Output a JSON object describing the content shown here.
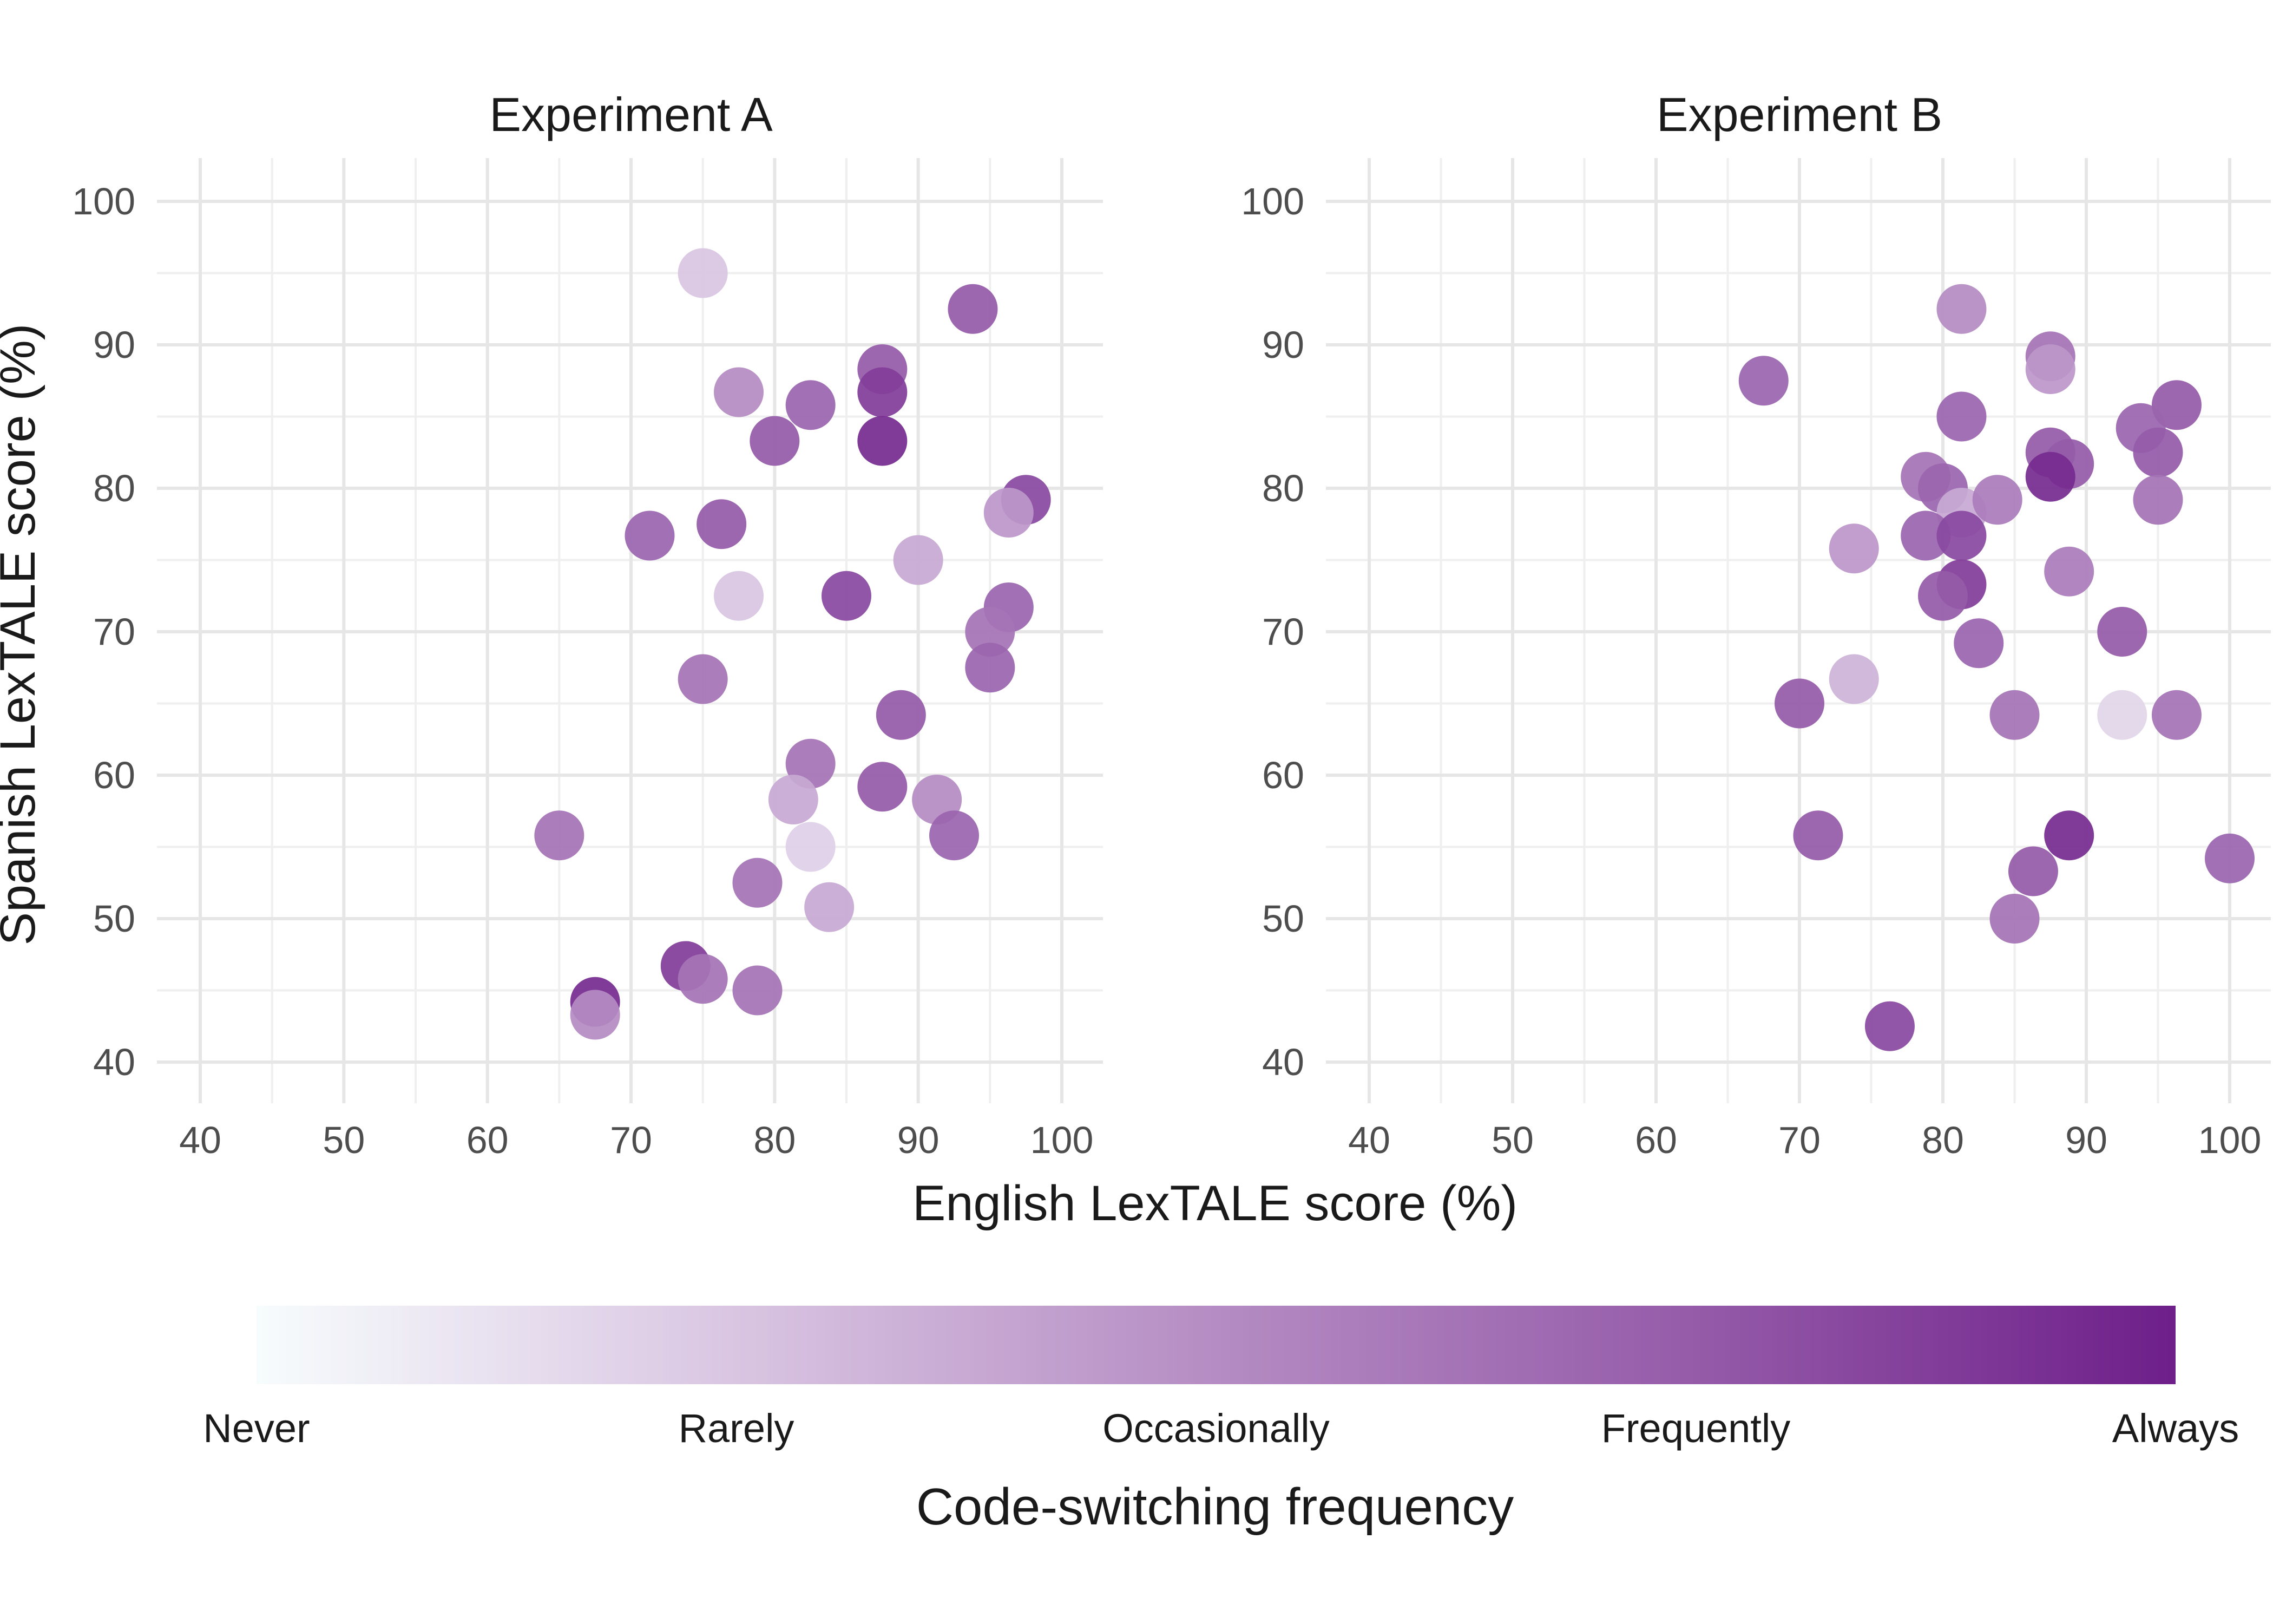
{
  "figure": {
    "xlabel": "English LexTALE score (%)",
    "ylabel": "Spanish LexTALE score (%)"
  },
  "legend": {
    "title": "Code-switching frequency",
    "levels": [
      "Never",
      "Rarely",
      "Occasionally",
      "Frequently",
      "Always"
    ],
    "scale_min": 0,
    "scale_max": 4,
    "colors": [
      "#f7fcfd",
      "#d9c5e2",
      "#b58cc3",
      "#955ba9",
      "#6e1f8a"
    ]
  },
  "chart_data": [
    {
      "type": "scatter",
      "title": "Experiment A",
      "xlabel": "English LexTALE score (%)",
      "ylabel": "Spanish LexTALE score (%)",
      "xlim": [
        40,
        100
      ],
      "ylim": [
        40,
        100
      ],
      "x_ticks": [
        "40",
        "50",
        "60",
        "70",
        "80",
        "90",
        "100"
      ],
      "y_ticks": [
        "40",
        "50",
        "60",
        "70",
        "80",
        "90",
        "100"
      ],
      "grid": true,
      "points": [
        {
          "x": 75,
          "y": 95,
          "cs": 1.0
        },
        {
          "x": 93.8,
          "y": 92.5,
          "cs": 3.0
        },
        {
          "x": 87.5,
          "y": 88.3,
          "cs": 3.0
        },
        {
          "x": 87.5,
          "y": 86.7,
          "cs": 3.5
        },
        {
          "x": 77.5,
          "y": 86.7,
          "cs": 2.0
        },
        {
          "x": 82.5,
          "y": 85.8,
          "cs": 2.8
        },
        {
          "x": 80,
          "y": 83.3,
          "cs": 3.0
        },
        {
          "x": 87.5,
          "y": 83.3,
          "cs": 3.8
        },
        {
          "x": 97.5,
          "y": 79.2,
          "cs": 3.3
        },
        {
          "x": 96.3,
          "y": 78.3,
          "cs": 1.8
        },
        {
          "x": 76.3,
          "y": 77.5,
          "cs": 3.0
        },
        {
          "x": 71.3,
          "y": 76.7,
          "cs": 2.8
        },
        {
          "x": 90,
          "y": 75,
          "cs": 1.5
        },
        {
          "x": 77.5,
          "y": 72.5,
          "cs": 1.0
        },
        {
          "x": 85,
          "y": 72.5,
          "cs": 3.3
        },
        {
          "x": 96.3,
          "y": 71.7,
          "cs": 2.8
        },
        {
          "x": 95,
          "y": 70,
          "cs": 2.5
        },
        {
          "x": 95,
          "y": 67.5,
          "cs": 2.8
        },
        {
          "x": 75,
          "y": 66.7,
          "cs": 2.5
        },
        {
          "x": 88.8,
          "y": 64.2,
          "cs": 3.0
        },
        {
          "x": 82.5,
          "y": 60.8,
          "cs": 2.5
        },
        {
          "x": 87.5,
          "y": 59.2,
          "cs": 3.0
        },
        {
          "x": 81.3,
          "y": 58.3,
          "cs": 1.5
        },
        {
          "x": 91.3,
          "y": 58.3,
          "cs": 2.0
        },
        {
          "x": 65,
          "y": 55.8,
          "cs": 2.5
        },
        {
          "x": 92.5,
          "y": 55.8,
          "cs": 2.8
        },
        {
          "x": 82.5,
          "y": 55,
          "cs": 0.8
        },
        {
          "x": 78.8,
          "y": 52.5,
          "cs": 2.5
        },
        {
          "x": 83.8,
          "y": 50.8,
          "cs": 1.5
        },
        {
          "x": 73.8,
          "y": 46.7,
          "cs": 3.5
        },
        {
          "x": 75,
          "y": 45.8,
          "cs": 2.5
        },
        {
          "x": 78.8,
          "y": 45,
          "cs": 2.5
        },
        {
          "x": 67.5,
          "y": 44.2,
          "cs": 3.8
        },
        {
          "x": 67.5,
          "y": 43.3,
          "cs": 2.0
        }
      ]
    },
    {
      "type": "scatter",
      "title": "Experiment B",
      "xlabel": "English LexTALE score (%)",
      "ylabel": "Spanish LexTALE score (%)",
      "xlim": [
        40,
        100
      ],
      "ylim": [
        40,
        100
      ],
      "x_ticks": [
        "40",
        "50",
        "60",
        "70",
        "80",
        "90",
        "100"
      ],
      "y_ticks": [
        "40",
        "50",
        "60",
        "70",
        "80",
        "90",
        "100"
      ],
      "grid": true,
      "points": [
        {
          "x": 81.3,
          "y": 92.5,
          "cs": 2.0
        },
        {
          "x": 87.5,
          "y": 89.2,
          "cs": 2.5
        },
        {
          "x": 87.5,
          "y": 88.3,
          "cs": 1.8
        },
        {
          "x": 67.5,
          "y": 87.5,
          "cs": 2.8
        },
        {
          "x": 96.3,
          "y": 85.8,
          "cs": 3.0
        },
        {
          "x": 81.3,
          "y": 85,
          "cs": 2.8
        },
        {
          "x": 93.8,
          "y": 84.2,
          "cs": 2.8
        },
        {
          "x": 95,
          "y": 82.5,
          "cs": 3.0
        },
        {
          "x": 87.5,
          "y": 82.5,
          "cs": 3.0
        },
        {
          "x": 88.8,
          "y": 81.7,
          "cs": 3.0
        },
        {
          "x": 78.8,
          "y": 80.8,
          "cs": 2.5
        },
        {
          "x": 87.5,
          "y": 80.8,
          "cs": 3.8
        },
        {
          "x": 80,
          "y": 80,
          "cs": 2.8
        },
        {
          "x": 81.3,
          "y": 78.3,
          "cs": 1.5
        },
        {
          "x": 83.8,
          "y": 79.2,
          "cs": 2.3
        },
        {
          "x": 95,
          "y": 79.2,
          "cs": 2.5
        },
        {
          "x": 78.8,
          "y": 76.7,
          "cs": 2.8
        },
        {
          "x": 81.3,
          "y": 76.7,
          "cs": 3.3
        },
        {
          "x": 73.8,
          "y": 75.8,
          "cs": 1.8
        },
        {
          "x": 88.8,
          "y": 74.2,
          "cs": 2.3
        },
        {
          "x": 81.3,
          "y": 73.3,
          "cs": 3.5
        },
        {
          "x": 80,
          "y": 72.5,
          "cs": 3.0
        },
        {
          "x": 92.5,
          "y": 70,
          "cs": 3.0
        },
        {
          "x": 82.5,
          "y": 69.2,
          "cs": 2.8
        },
        {
          "x": 73.8,
          "y": 66.7,
          "cs": 1.3
        },
        {
          "x": 70,
          "y": 65,
          "cs": 3.0
        },
        {
          "x": 85,
          "y": 64.2,
          "cs": 2.5
        },
        {
          "x": 92.5,
          "y": 64.2,
          "cs": 0.7
        },
        {
          "x": 96.3,
          "y": 64.2,
          "cs": 2.5
        },
        {
          "x": 71.3,
          "y": 55.8,
          "cs": 3.0
        },
        {
          "x": 88.8,
          "y": 55.8,
          "cs": 3.8
        },
        {
          "x": 100,
          "y": 54.2,
          "cs": 2.8
        },
        {
          "x": 86.3,
          "y": 53.3,
          "cs": 3.0
        },
        {
          "x": 85,
          "y": 50,
          "cs": 2.5
        },
        {
          "x": 76.3,
          "y": 42.5,
          "cs": 3.3
        }
      ]
    }
  ]
}
